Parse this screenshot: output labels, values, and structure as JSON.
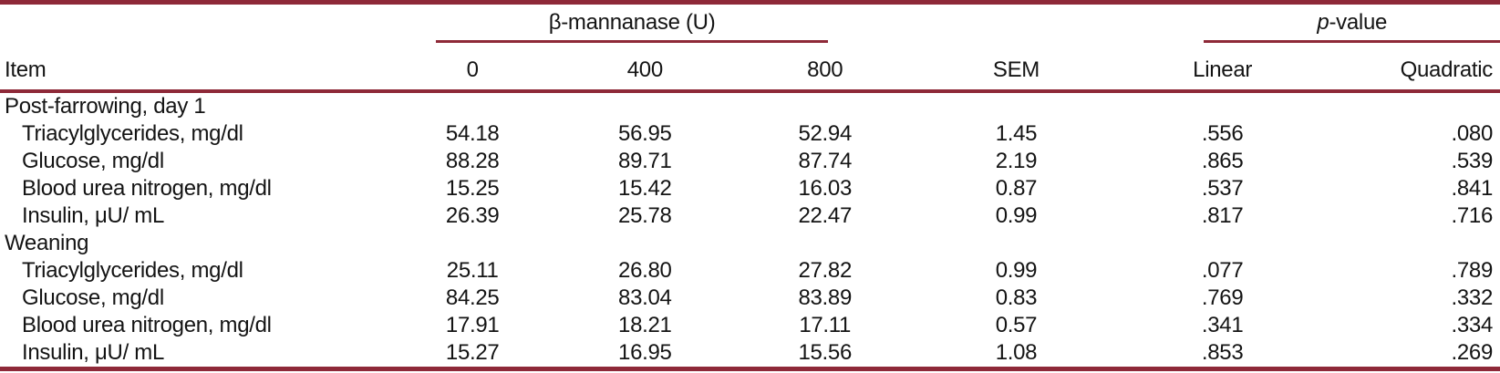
{
  "table": {
    "item_header": "Item",
    "spanner_beta": "β-mannanase (U)",
    "spanner_pvalue_prefix": "p",
    "spanner_pvalue_suffix": "-value",
    "columns": [
      "0",
      "400",
      "800",
      "SEM",
      "Linear",
      "Quadratic"
    ],
    "sections": [
      {
        "label": "Post-farrowing, day 1",
        "rows": [
          {
            "item": "Triacylglycerides, mg/dl",
            "values": [
              "54.18",
              "56.95",
              "52.94",
              "1.45",
              ".556",
              ".080"
            ]
          },
          {
            "item": "Glucose, mg/dl",
            "values": [
              "88.28",
              "89.71",
              "87.74",
              "2.19",
              ".865",
              ".539"
            ]
          },
          {
            "item": "Blood urea nitrogen, mg/dl",
            "values": [
              "15.25",
              "15.42",
              "16.03",
              "0.87",
              ".537",
              ".841"
            ]
          },
          {
            "item": "Insulin, μU/ mL",
            "values": [
              "26.39",
              "25.78",
              "22.47",
              "0.99",
              ".817",
              ".716"
            ]
          }
        ]
      },
      {
        "label": "Weaning",
        "rows": [
          {
            "item": "Triacylglycerides, mg/dl",
            "values": [
              "25.11",
              "26.80",
              "27.82",
              "0.99",
              ".077",
              ".789"
            ]
          },
          {
            "item": "Glucose, mg/dl",
            "values": [
              "84.25",
              "83.04",
              "83.89",
              "0.83",
              ".769",
              ".332"
            ]
          },
          {
            "item": "Blood urea nitrogen, mg/dl",
            "values": [
              "17.91",
              "18.21",
              "17.11",
              "0.57",
              ".341",
              ".334"
            ]
          },
          {
            "item": "Insulin, μU/ mL",
            "values": [
              "15.27",
              "16.95",
              "15.56",
              "1.08",
              ".853",
              ".269"
            ]
          }
        ]
      }
    ]
  },
  "colors": {
    "rule": "#8e2938",
    "text": "#141414",
    "background": "#ffffff"
  }
}
